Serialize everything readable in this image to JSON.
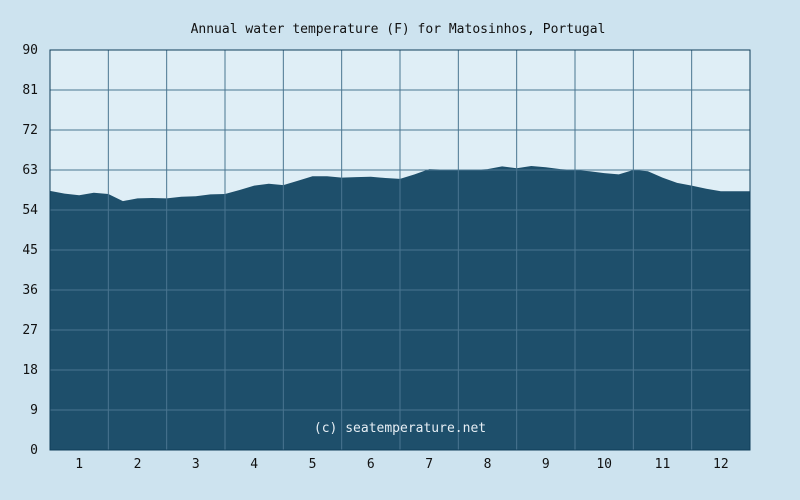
{
  "chart_data": {
    "type": "area",
    "title": "Annual water temperature (F) for Matosinhos, Portugal",
    "xlabel": "",
    "ylabel": "",
    "ylim": [
      0,
      90
    ],
    "xlim": [
      0.5,
      12.5
    ],
    "y_ticks": [
      "0",
      "9",
      "18",
      "27",
      "36",
      "45",
      "54",
      "63",
      "72",
      "81",
      "90"
    ],
    "x_ticks": [
      "1",
      "2",
      "3",
      "4",
      "5",
      "6",
      "7",
      "8",
      "9",
      "10",
      "11",
      "12"
    ],
    "grid": true,
    "annotation": "(c) seatemperature.net",
    "series": [
      {
        "x": [
          0.5,
          0.75,
          1.0,
          1.25,
          1.5,
          1.75,
          2.0,
          2.25,
          2.5,
          2.75,
          3.0,
          3.25,
          3.5,
          3.75,
          4.0,
          4.25,
          4.5,
          4.75,
          5.0,
          5.25,
          5.5,
          5.75,
          6.0,
          6.25,
          6.5,
          6.75,
          7.0,
          7.25,
          7.5,
          7.75,
          8.0,
          8.25,
          8.5,
          8.75,
          9.0,
          9.25,
          9.5,
          9.75,
          10.0,
          10.25,
          10.5,
          10.75,
          11.0,
          11.25,
          11.5,
          11.75,
          12.0,
          12.25,
          12.5
        ],
        "y": [
          58.3,
          57.7,
          57.3,
          57.9,
          57.6,
          56.0,
          56.6,
          56.7,
          56.6,
          57.0,
          57.1,
          57.5,
          57.6,
          58.5,
          59.5,
          59.9,
          59.6,
          60.6,
          61.6,
          61.6,
          61.3,
          61.4,
          61.5,
          61.2,
          61.0,
          62.0,
          63.2,
          63.1,
          62.9,
          63.0,
          63.2,
          63.8,
          63.4,
          63.9,
          63.6,
          63.2,
          63.0,
          62.7,
          62.3,
          62.0,
          63.0,
          62.7,
          61.3,
          60.1,
          59.5,
          58.8,
          58.2,
          58.2,
          58.2
        ]
      }
    ]
  }
}
